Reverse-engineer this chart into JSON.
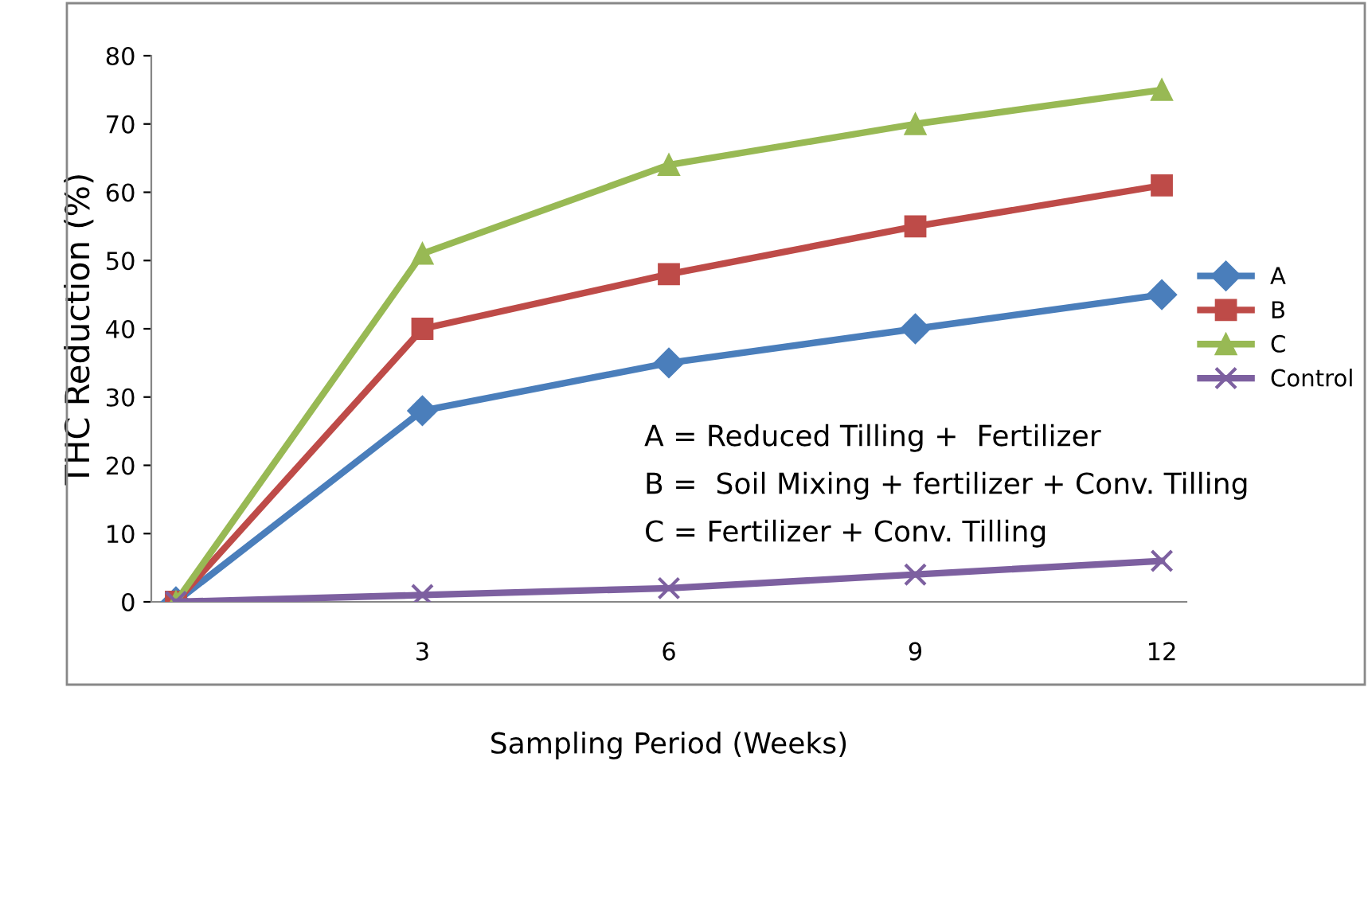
{
  "chart_data": {
    "type": "line",
    "xlabel": "Sampling Period (Weeks)",
    "ylabel": "THC Reduction (%)",
    "categories": [
      null,
      "3",
      "6",
      "9",
      "12"
    ],
    "series": [
      {
        "name": "A",
        "color": "#4a7ebb",
        "marker": "diamond",
        "values": [
          0,
          28,
          35,
          40,
          45
        ]
      },
      {
        "name": "B",
        "color": "#be4b48",
        "marker": "square",
        "values": [
          0,
          40,
          48,
          55,
          61
        ]
      },
      {
        "name": "C",
        "color": "#98b954",
        "marker": "triangle",
        "values": [
          0,
          51,
          64,
          70,
          75
        ]
      },
      {
        "name": "Control",
        "color": "#7d60a0",
        "marker": "cross",
        "values": [
          0,
          1,
          2,
          4,
          6
        ]
      }
    ],
    "ylim": [
      0,
      80
    ],
    "yticks": [
      0,
      10,
      20,
      30,
      40,
      50,
      60,
      70,
      80
    ],
    "grid": false,
    "legend": "right",
    "line_style": "solid",
    "annotations": [
      "A = Reduced Tilling +  Fertilizer",
      "B =  Soil Mixing + fertilizer + Conv. Tilling",
      "C = Fertilizer + Conv. Tilling"
    ]
  }
}
